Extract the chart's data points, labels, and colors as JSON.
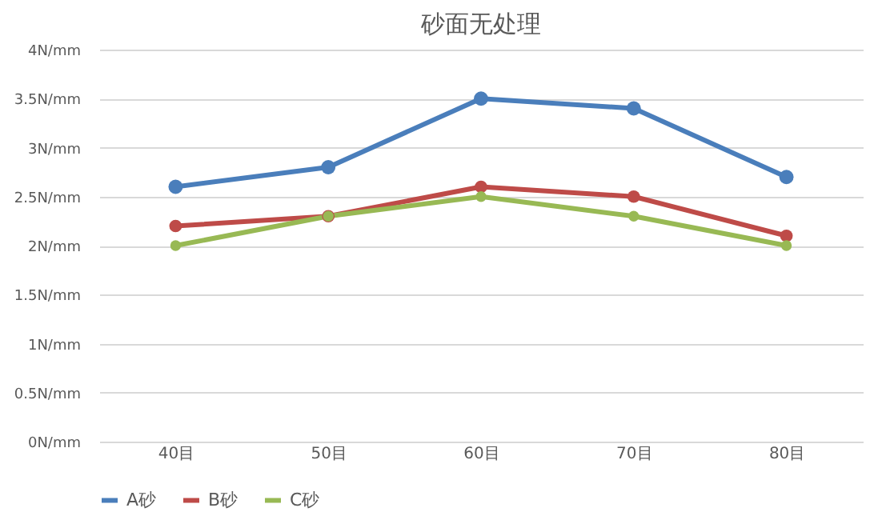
{
  "chart_data": {
    "type": "line",
    "title": "砂面无处理",
    "categories": [
      "40目",
      "50目",
      "60目",
      "70目",
      "80目"
    ],
    "series": [
      {
        "name": "A砂",
        "color": "#4a7ebb",
        "values": [
          2.6,
          2.8,
          3.5,
          3.4,
          2.7
        ]
      },
      {
        "name": "B砂",
        "color": "#be4b48",
        "values": [
          2.2,
          2.3,
          2.6,
          2.5,
          2.1
        ]
      },
      {
        "name": "C砂",
        "color": "#98b954",
        "values": [
          2.0,
          2.3,
          2.5,
          2.3,
          2.0
        ]
      }
    ],
    "ylim": [
      0,
      4
    ],
    "yticks": [
      {
        "value": 0,
        "label": "0N/mm"
      },
      {
        "value": 0.5,
        "label": "0.5N/mm"
      },
      {
        "value": 1,
        "label": "1N/mm"
      },
      {
        "value": 1.5,
        "label": "1.5N/mm"
      },
      {
        "value": 2,
        "label": "2N/mm"
      },
      {
        "value": 2.5,
        "label": "2.5N/mm"
      },
      {
        "value": 3,
        "label": "3N/mm"
      },
      {
        "value": 3.5,
        "label": "3.5N/mm"
      },
      {
        "value": 4,
        "label": "4N/mm"
      }
    ],
    "grid": "y",
    "legend": "bottom",
    "marker": "circle",
    "line_style": "solid"
  }
}
